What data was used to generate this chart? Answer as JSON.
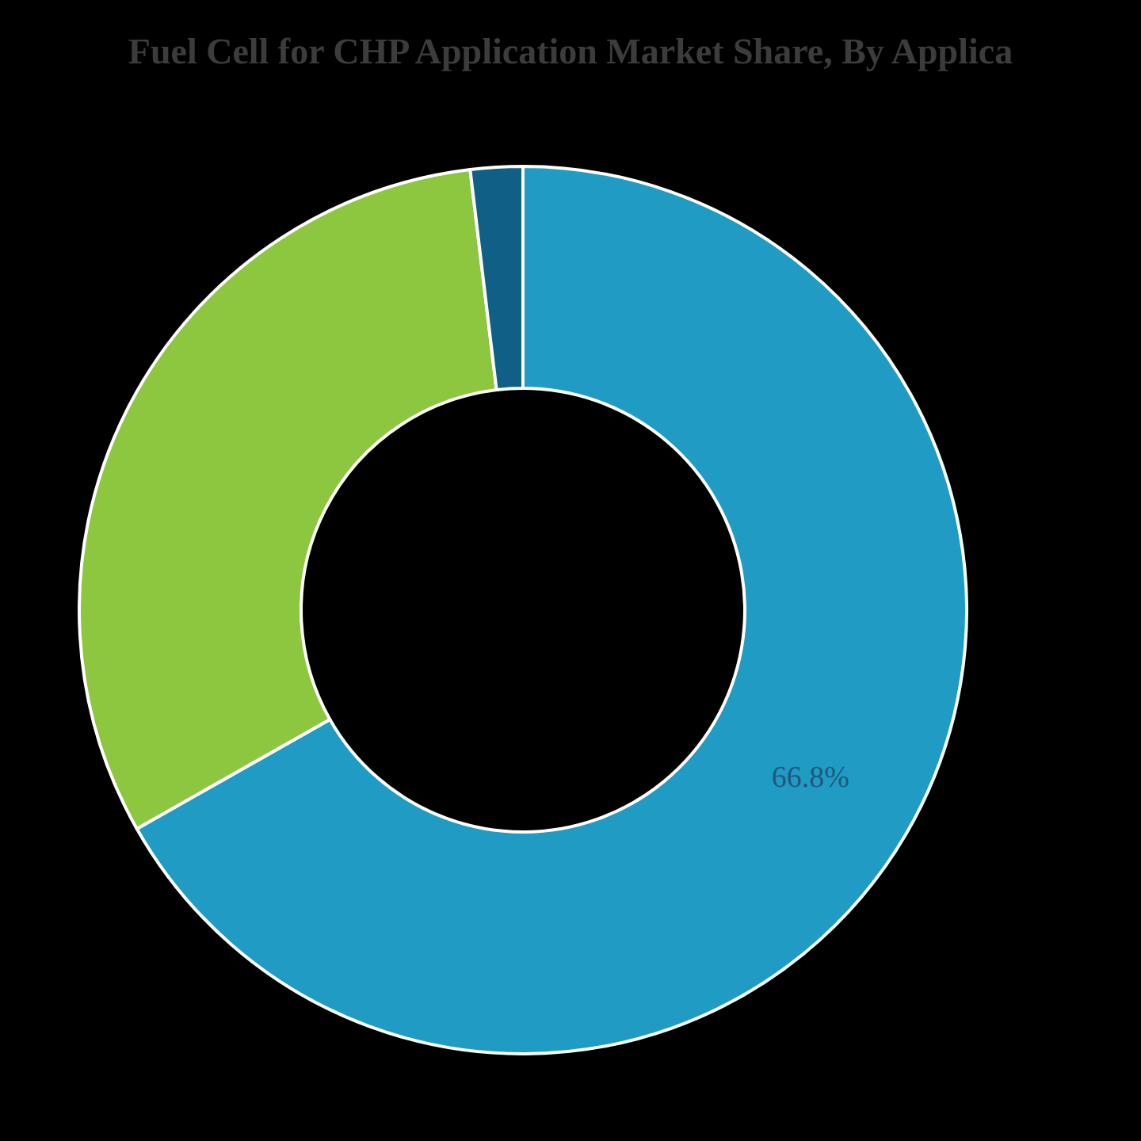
{
  "chart_data": {
    "type": "donut",
    "title": "Fuel Cell for CHP Application Market Share, By Applica",
    "categories": [
      null,
      null,
      null
    ],
    "values": [
      66.8,
      31.3,
      1.9
    ],
    "colors": [
      "#1f9bc4",
      "#8dc63f",
      "#0f5f86"
    ],
    "value_labels": [
      "66.8%",
      null,
      null
    ]
  }
}
